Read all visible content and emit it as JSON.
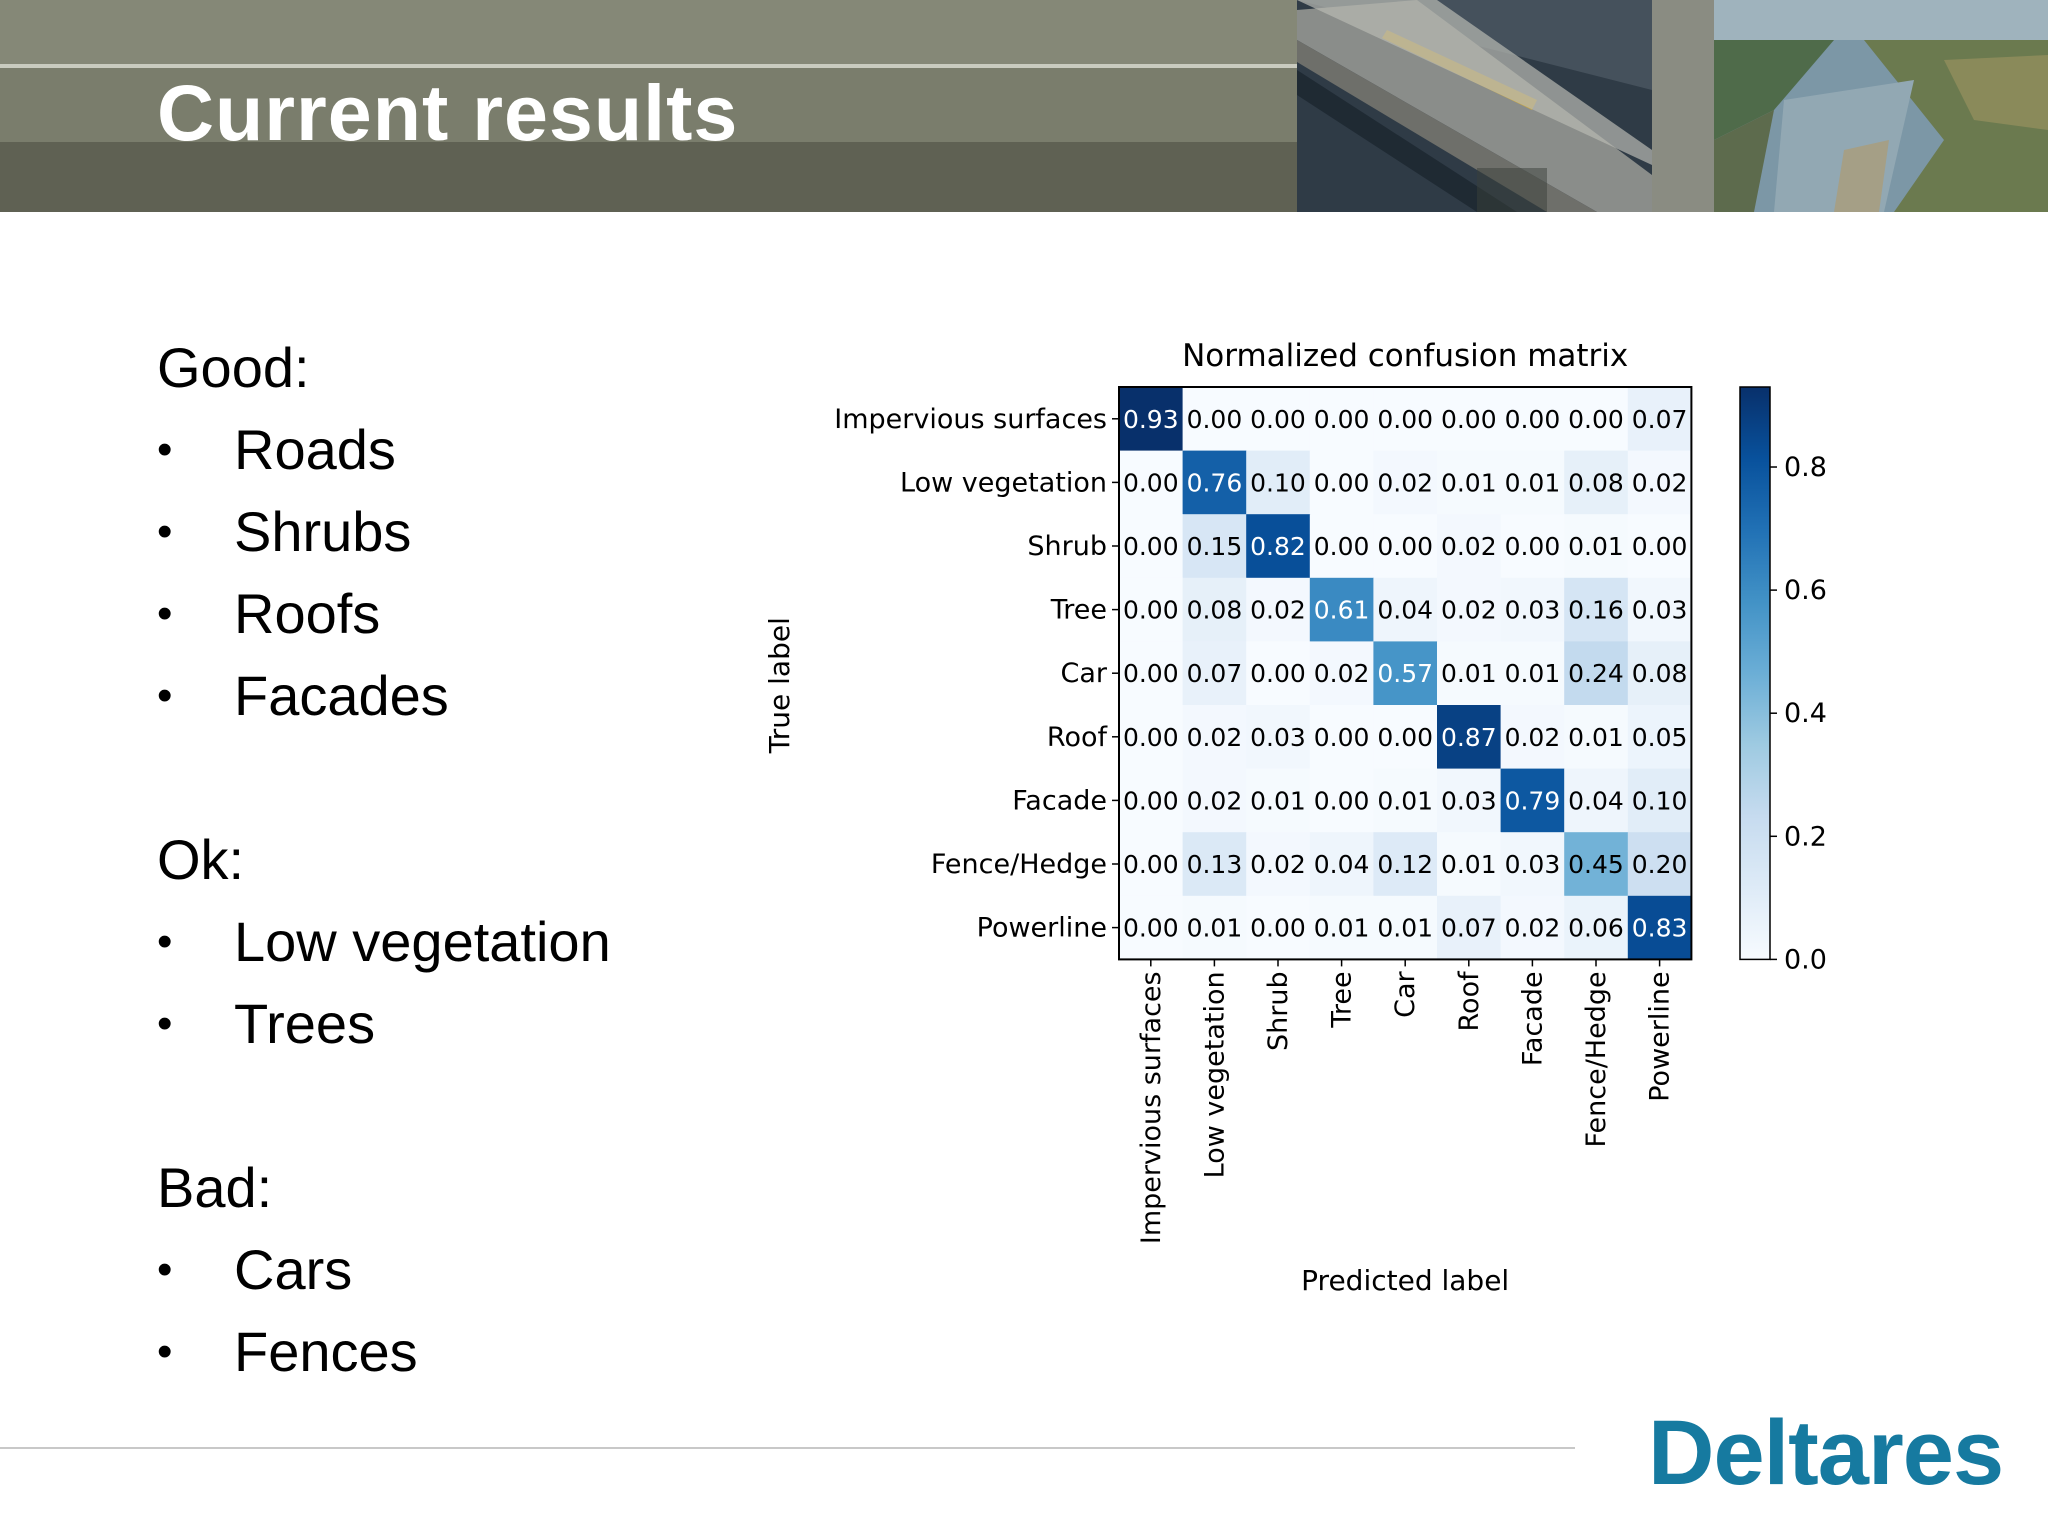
{
  "slide": {
    "title": "Current results",
    "logo_text": "Deltares",
    "colors": {
      "logo": "#167aa0",
      "header": "#7a7d6c",
      "header_rule": "#c9cbbf"
    }
  },
  "sections": [
    {
      "heading": "Good:",
      "items": [
        "Roads",
        "Shrubs",
        "Roofs",
        "Facades"
      ]
    },
    {
      "heading": "Ok:",
      "items": [
        "Low vegetation",
        "Trees"
      ]
    },
    {
      "heading": "Bad:",
      "items": [
        "Cars",
        "Fences"
      ]
    }
  ],
  "bullet_glyph": "•",
  "chart_data": {
    "type": "heatmap",
    "title": "Normalized confusion matrix",
    "ylabel": "True label",
    "xlabel": "Predicted label",
    "labels": [
      "Impervious surfaces",
      "Low vegetation",
      "Shrub",
      "Tree",
      "Car",
      "Roof",
      "Facade",
      "Fence/Hedge",
      "Powerline"
    ],
    "matrix": [
      [
        0.93,
        0.0,
        0.0,
        0.0,
        0.0,
        0.0,
        0.0,
        0.0,
        0.07
      ],
      [
        0.0,
        0.76,
        0.1,
        0.0,
        0.02,
        0.01,
        0.01,
        0.08,
        0.02
      ],
      [
        0.0,
        0.15,
        0.82,
        0.0,
        0.0,
        0.02,
        0.0,
        0.01,
        0.0
      ],
      [
        0.0,
        0.08,
        0.02,
        0.61,
        0.04,
        0.02,
        0.03,
        0.16,
        0.03
      ],
      [
        0.0,
        0.07,
        0.0,
        0.02,
        0.57,
        0.01,
        0.01,
        0.24,
        0.08
      ],
      [
        0.0,
        0.02,
        0.03,
        0.0,
        0.0,
        0.87,
        0.02,
        0.01,
        0.05
      ],
      [
        0.0,
        0.02,
        0.01,
        0.0,
        0.01,
        0.03,
        0.79,
        0.04,
        0.1
      ],
      [
        0.0,
        0.13,
        0.02,
        0.04,
        0.12,
        0.01,
        0.03,
        0.45,
        0.2
      ],
      [
        0.0,
        0.01,
        0.0,
        0.01,
        0.01,
        0.07,
        0.02,
        0.06,
        0.83
      ]
    ],
    "colorbar": {
      "range": [
        0.0,
        0.93
      ],
      "ticks": [
        "0.0",
        "0.2",
        "0.4",
        "0.6",
        "0.8"
      ],
      "tick_values": [
        0.0,
        0.2,
        0.4,
        0.6,
        0.8
      ],
      "colormap": "Blues"
    }
  }
}
